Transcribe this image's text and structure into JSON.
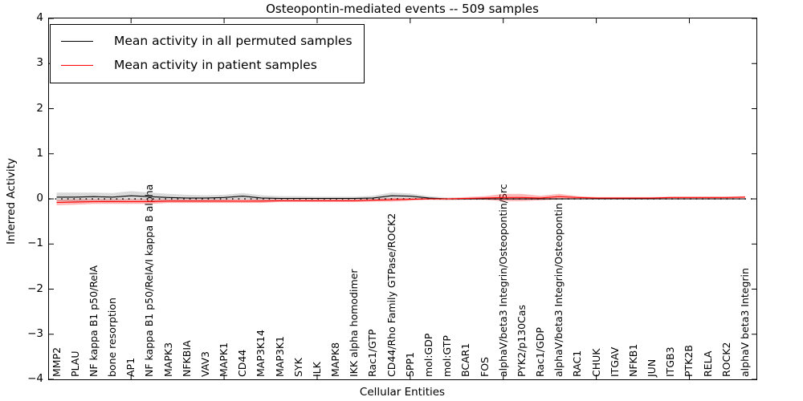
{
  "chart_data": {
    "type": "line",
    "title": "Osteopontin-mediated events -- 509 samples",
    "xlabel": "Cellular Entities",
    "ylabel": "Inferred Activity",
    "ylim": [
      -4,
      4
    ],
    "yticks": [
      4,
      3,
      2,
      1,
      0,
      -1,
      -2,
      -3,
      -4
    ],
    "x_major_tick_indices": [
      4,
      9,
      14,
      19,
      24,
      29,
      34
    ],
    "grid": false,
    "legend_position": "upper left",
    "zero_line": {
      "style": "dotted",
      "color": "#000000",
      "y": 0
    },
    "categories": [
      "MMP2",
      "PLAU",
      "NF kappa B1 p50/RelA",
      "bone resorption",
      "AP1",
      "NF kappa B1 p50/RelA/I kappa B alpha",
      "MAPK3",
      "NFKBIA",
      "VAV3",
      "MAPK1",
      "CD44",
      "MAP3K14",
      "MAP3K1",
      "SYK",
      "ILK",
      "MAPK8",
      "IKK alpha homodimer",
      "Rac1/GTP",
      "CD44/Rho Family GTPase/ROCK2",
      "SPP1",
      "mol:GDP",
      "mol:GTP",
      "BCAR1",
      "FOS",
      "alphaV/beta3 Integrin/Osteopontin/Src",
      "PYK2/p130Cas",
      "Rac1/GDP",
      "alphaV/beta3 Integrin/Osteopontin",
      "RAC1",
      "CHUK",
      "ITGAV",
      "NFKB1",
      "JUN",
      "ITGB3",
      "PTK2B",
      "RELA",
      "ROCK2",
      "alphaV beta3 Integrin"
    ],
    "series": [
      {
        "name": "Mean activity in all permuted samples",
        "color": "#000000",
        "band_color": "#888888",
        "band_opacity": 0.32,
        "values": [
          0.04,
          0.04,
          0.05,
          0.04,
          0.07,
          0.05,
          0.03,
          0.02,
          0.02,
          0.03,
          0.06,
          0.02,
          0.01,
          0.01,
          0.01,
          0.01,
          0.01,
          0.02,
          0.07,
          0.06,
          0.02,
          0.0,
          0.0,
          0.0,
          0.0,
          0.0,
          0.0,
          0.0,
          0.0,
          0.0,
          0.0,
          0.0,
          0.0,
          0.0,
          0.0,
          0.0,
          0.0,
          0.0
        ],
        "band": [
          0.1,
          0.1,
          0.09,
          0.09,
          0.1,
          0.09,
          0.08,
          0.07,
          0.06,
          0.06,
          0.07,
          0.06,
          0.05,
          0.05,
          0.04,
          0.04,
          0.04,
          0.05,
          0.07,
          0.06,
          0.04,
          0.03,
          0.02,
          0.02,
          0.02,
          0.02,
          0.02,
          0.02,
          0.01,
          0.01,
          0.01,
          0.01,
          0.01,
          0.01,
          0.01,
          0.01,
          0.01,
          0.01
        ]
      },
      {
        "name": "Mean activity in patient samples",
        "color": "#ff0000",
        "band_color": "#ff0000",
        "band_opacity": 0.28,
        "values": [
          -0.08,
          -0.07,
          -0.06,
          -0.06,
          -0.06,
          -0.06,
          -0.05,
          -0.05,
          -0.05,
          -0.05,
          -0.05,
          -0.05,
          -0.04,
          -0.04,
          -0.04,
          -0.04,
          -0.04,
          -0.03,
          -0.02,
          -0.01,
          0.0,
          0.0,
          0.01,
          0.02,
          0.03,
          0.03,
          0.02,
          0.05,
          0.03,
          0.02,
          0.02,
          0.02,
          0.02,
          0.03,
          0.03,
          0.03,
          0.03,
          0.04
        ],
        "band": [
          0.06,
          0.06,
          0.05,
          0.05,
          0.05,
          0.05,
          0.04,
          0.04,
          0.04,
          0.04,
          0.04,
          0.04,
          0.03,
          0.03,
          0.03,
          0.03,
          0.03,
          0.03,
          0.04,
          0.03,
          0.02,
          0.02,
          0.03,
          0.04,
          0.08,
          0.08,
          0.05,
          0.06,
          0.03,
          0.02,
          0.02,
          0.02,
          0.02,
          0.02,
          0.02,
          0.02,
          0.02,
          0.02
        ]
      }
    ]
  }
}
